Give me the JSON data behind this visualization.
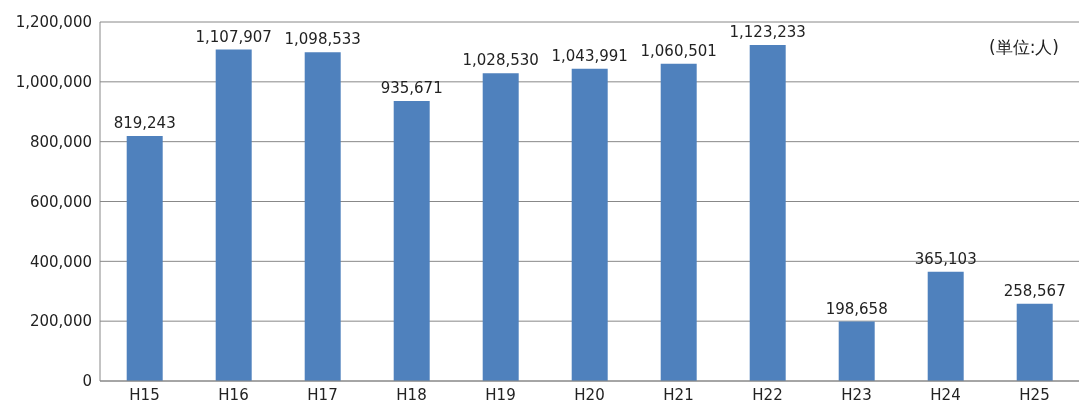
{
  "chart_data": {
    "type": "bar",
    "categories": [
      "H15",
      "H16",
      "H17",
      "H18",
      "H19",
      "H20",
      "H21",
      "H22",
      "H23",
      "H24",
      "H25"
    ],
    "values": [
      819243,
      1107907,
      1098533,
      935671,
      1028530,
      1043991,
      1060501,
      1123233,
      198658,
      365103,
      258567
    ],
    "value_labels": [
      "819,243",
      "1,107,907",
      "1,098,533",
      "935,671",
      "1,028,530",
      "1,043,991",
      "1,060,501",
      "1,123,233",
      "198,658",
      "365,103",
      "258,567"
    ],
    "color": "#4f81bd",
    "ylim": [
      0,
      1200000
    ],
    "yticks": [
      0,
      {
        "value": 200000,
        "label": "200,000"
      },
      {
        "value": 400000,
        "label": "400,000"
      },
      {
        "value": 600000,
        "label": "600,000"
      },
      {
        "value": 800000,
        "label": "800,000"
      },
      {
        "value": 1000000,
        "label": "1,000,000"
      },
      {
        "value": 1200000,
        "label": "1,200,000"
      }
    ],
    "grid": "y",
    "annotations": [
      "(単位:人)"
    ]
  }
}
